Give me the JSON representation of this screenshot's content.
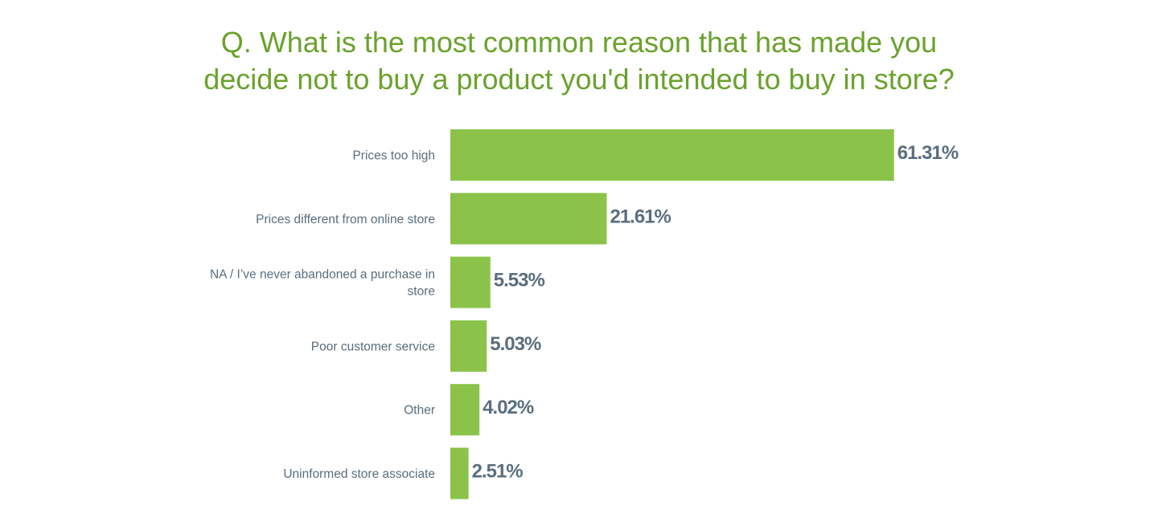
{
  "chart_data": {
    "type": "bar",
    "orientation": "horizontal",
    "title": "Q. What is the most common reason that has made you decide not to buy a product you'd intended to buy in store?",
    "title_lines": [
      "Q. What is the most common reason that has made you",
      "decide not to buy a product you'd intended to buy in store?"
    ],
    "categories": [
      "Prices too high",
      "Prices different from online store",
      "NA / I’ve never abandoned a purchase in store",
      "Poor customer service",
      "Other",
      "Uninformed store associate"
    ],
    "category_lines": [
      [
        "Prices too high"
      ],
      [
        "Prices different from online store"
      ],
      [
        "NA / I’ve never abandoned a purchase in",
        "store"
      ],
      [
        "Poor customer service"
      ],
      [
        "Other"
      ],
      [
        "Uninformed store associate"
      ]
    ],
    "values": [
      61.31,
      21.61,
      5.53,
      5.03,
      4.02,
      2.51
    ],
    "value_labels": [
      "61.31%",
      "21.61%",
      "5.53%",
      "5.03%",
      "4.02%",
      "2.51%"
    ],
    "xlim": [
      0,
      100
    ],
    "grid": false,
    "legend": "none",
    "colors": {
      "bar": "#8bc34a",
      "title": "#6aa22d",
      "labels": "#5a6e7d"
    }
  }
}
